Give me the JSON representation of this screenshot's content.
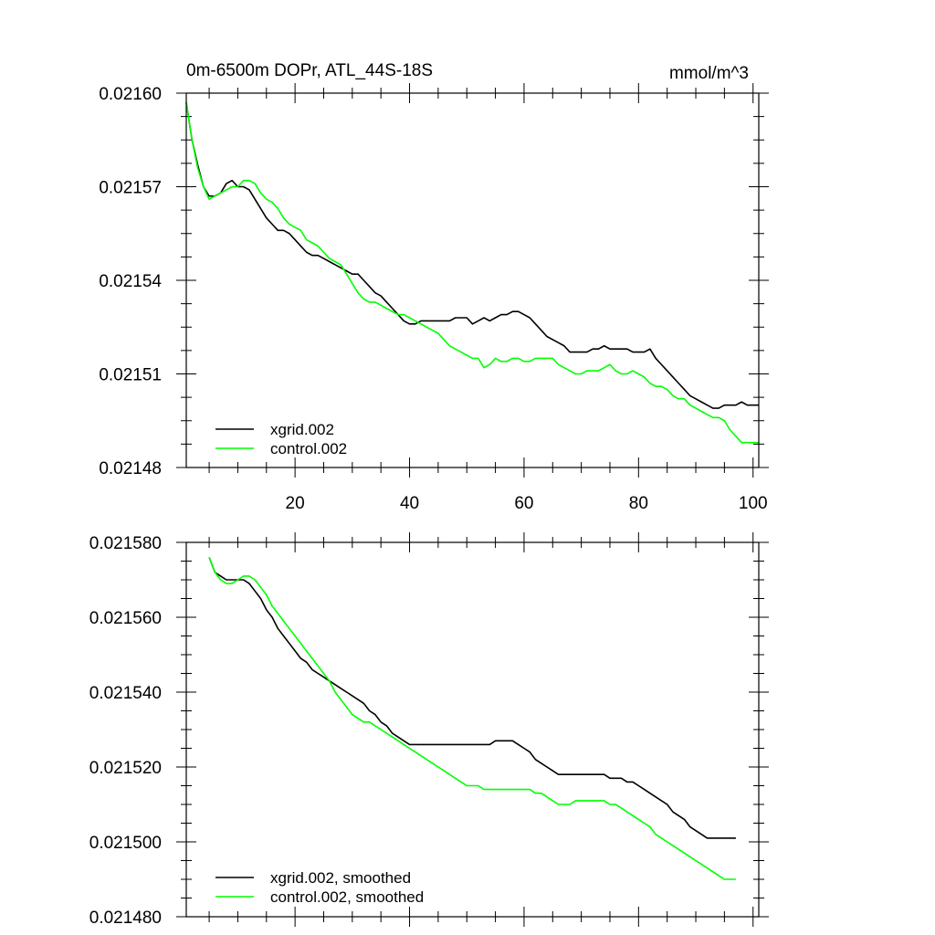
{
  "chart_data": [
    {
      "type": "line",
      "title_left": "0m-6500m DOPr, ATL_44S-18S",
      "title_right": "mmol/m^3",
      "xlim": [
        1,
        101
      ],
      "ylim": [
        0.02148,
        0.0216
      ],
      "x_ticks": [
        20,
        40,
        60,
        80,
        100
      ],
      "x_tick_labels": [
        "20",
        "40",
        "60",
        "80",
        "100"
      ],
      "y_ticks": [
        0.02148,
        0.02151,
        0.02154,
        0.02157,
        0.0216
      ],
      "y_tick_labels": [
        "0.02148",
        "0.02151",
        "0.02154",
        "0.02157",
        "0.02160"
      ],
      "legend": [
        "xgrid.002",
        "control.002"
      ],
      "series": [
        {
          "name": "xgrid.002",
          "color": "#000000",
          "x": [
            1,
            2,
            3,
            4,
            5,
            6,
            7,
            8,
            9,
            10,
            11,
            12,
            13,
            14,
            15,
            16,
            17,
            18,
            19,
            20,
            21,
            22,
            23,
            24,
            25,
            26,
            27,
            28,
            29,
            30,
            31,
            32,
            33,
            34,
            35,
            36,
            37,
            38,
            39,
            40,
            41,
            42,
            43,
            44,
            45,
            46,
            47,
            48,
            49,
            50,
            51,
            52,
            53,
            54,
            55,
            56,
            57,
            58,
            59,
            60,
            61,
            62,
            63,
            64,
            65,
            66,
            67,
            68,
            69,
            70,
            71,
            72,
            73,
            74,
            75,
            76,
            77,
            78,
            79,
            80,
            81,
            82,
            83,
            84,
            85,
            86,
            87,
            88,
            89,
            90,
            91,
            92,
            93,
            94,
            95,
            96,
            97,
            98,
            99,
            100,
            101
          ],
          "values": [
            0.021597,
            0.021585,
            0.021577,
            0.02157,
            0.021567,
            0.021567,
            0.021568,
            0.021571,
            0.021572,
            0.02157,
            0.02157,
            0.021569,
            0.021566,
            0.021563,
            0.02156,
            0.021558,
            0.021556,
            0.021556,
            0.021555,
            0.021553,
            0.021551,
            0.021549,
            0.021548,
            0.021548,
            0.021547,
            0.021546,
            0.021545,
            0.021544,
            0.021543,
            0.021542,
            0.021542,
            0.02154,
            0.021538,
            0.021536,
            0.021535,
            0.021533,
            0.021531,
            0.021529,
            0.021527,
            0.021526,
            0.021526,
            0.021527,
            0.021527,
            0.021527,
            0.021527,
            0.021527,
            0.021527,
            0.021528,
            0.021528,
            0.021528,
            0.021526,
            0.021527,
            0.021528,
            0.021527,
            0.021528,
            0.021529,
            0.021529,
            0.02153,
            0.02153,
            0.021529,
            0.021528,
            0.021526,
            0.021524,
            0.021522,
            0.021521,
            0.02152,
            0.021519,
            0.021517,
            0.021517,
            0.021517,
            0.021517,
            0.021518,
            0.021518,
            0.021519,
            0.021518,
            0.021518,
            0.021518,
            0.021518,
            0.021517,
            0.021517,
            0.021517,
            0.021518,
            0.021515,
            0.021513,
            0.021511,
            0.021509,
            0.021507,
            0.021505,
            0.021503,
            0.021502,
            0.021501,
            0.0215,
            0.021499,
            0.021499,
            0.0215,
            0.0215,
            0.0215,
            0.021501,
            0.0215,
            0.0215,
            0.0215
          ]
        },
        {
          "name": "control.002",
          "color": "#00ff00",
          "x": [
            1,
            2,
            3,
            4,
            5,
            6,
            7,
            8,
            9,
            10,
            11,
            12,
            13,
            14,
            15,
            16,
            17,
            18,
            19,
            20,
            21,
            22,
            23,
            24,
            25,
            26,
            27,
            28,
            29,
            30,
            31,
            32,
            33,
            34,
            35,
            36,
            37,
            38,
            39,
            40,
            41,
            42,
            43,
            44,
            45,
            46,
            47,
            48,
            49,
            50,
            51,
            52,
            53,
            54,
            55,
            56,
            57,
            58,
            59,
            60,
            61,
            62,
            63,
            64,
            65,
            66,
            67,
            68,
            69,
            70,
            71,
            72,
            73,
            74,
            75,
            76,
            77,
            78,
            79,
            80,
            81,
            82,
            83,
            84,
            85,
            86,
            87,
            88,
            89,
            90,
            91,
            92,
            93,
            94,
            95,
            96,
            97,
            98,
            99,
            100,
            101
          ],
          "values": [
            0.021597,
            0.021585,
            0.021576,
            0.02157,
            0.021566,
            0.021567,
            0.021568,
            0.021569,
            0.02157,
            0.02157,
            0.021572,
            0.021572,
            0.021571,
            0.021568,
            0.021566,
            0.021565,
            0.021563,
            0.02156,
            0.021558,
            0.021557,
            0.021556,
            0.021553,
            0.021552,
            0.021551,
            0.021549,
            0.021547,
            0.021546,
            0.021545,
            0.021542,
            0.021539,
            0.021536,
            0.021534,
            0.021533,
            0.021533,
            0.021532,
            0.021531,
            0.02153,
            0.021529,
            0.021529,
            0.021528,
            0.021527,
            0.021526,
            0.021525,
            0.021524,
            0.021523,
            0.021521,
            0.021519,
            0.021518,
            0.021517,
            0.021516,
            0.021515,
            0.021515,
            0.021512,
            0.021513,
            0.021515,
            0.021514,
            0.021514,
            0.021515,
            0.021515,
            0.021514,
            0.021514,
            0.021515,
            0.021515,
            0.021515,
            0.021515,
            0.021513,
            0.021512,
            0.021511,
            0.02151,
            0.02151,
            0.021511,
            0.021511,
            0.021511,
            0.021512,
            0.021513,
            0.021511,
            0.02151,
            0.02151,
            0.021511,
            0.02151,
            0.021509,
            0.021507,
            0.021506,
            0.021506,
            0.021505,
            0.021503,
            0.021502,
            0.021502,
            0.0215,
            0.021499,
            0.021498,
            0.021497,
            0.021496,
            0.021496,
            0.021495,
            0.021492,
            0.02149,
            0.021488,
            0.021488,
            0.021488,
            0.021488
          ]
        }
      ]
    },
    {
      "type": "line",
      "xlim": [
        1,
        101
      ],
      "ylim": [
        0.02148,
        0.02158
      ],
      "x_ticks": [
        20,
        40,
        60,
        80,
        100
      ],
      "y_ticks": [
        0.02148,
        0.0215,
        0.02152,
        0.02154,
        0.02156,
        0.02158
      ],
      "y_tick_labels": [
        "0.021480",
        "0.021500",
        "0.021520",
        "0.021540",
        "0.021560",
        "0.021580"
      ],
      "legend": [
        "xgrid.002, smoothed",
        "control.002, smoothed"
      ],
      "series": [
        {
          "name": "xgrid.002, smoothed",
          "color": "#000000",
          "x": [
            5,
            6,
            7,
            8,
            9,
            10,
            11,
            12,
            13,
            14,
            15,
            16,
            17,
            18,
            19,
            20,
            21,
            22,
            23,
            24,
            25,
            26,
            27,
            28,
            29,
            30,
            31,
            32,
            33,
            34,
            35,
            36,
            37,
            38,
            39,
            40,
            41,
            42,
            43,
            44,
            45,
            46,
            47,
            48,
            49,
            50,
            51,
            52,
            53,
            54,
            55,
            56,
            57,
            58,
            59,
            60,
            61,
            62,
            63,
            64,
            65,
            66,
            67,
            68,
            69,
            70,
            71,
            72,
            73,
            74,
            75,
            76,
            77,
            78,
            79,
            80,
            81,
            82,
            83,
            84,
            85,
            86,
            87,
            88,
            89,
            90,
            91,
            92,
            93,
            94,
            95,
            96,
            97
          ],
          "values": [
            0.021576,
            0.021572,
            0.021571,
            0.02157,
            0.02157,
            0.02157,
            0.02157,
            0.021569,
            0.021567,
            0.021565,
            0.021562,
            0.02156,
            0.021557,
            0.021555,
            0.021553,
            0.021551,
            0.021549,
            0.021548,
            0.021546,
            0.021545,
            0.021544,
            0.021543,
            0.021542,
            0.021541,
            0.02154,
            0.021539,
            0.021538,
            0.021537,
            0.021535,
            0.021534,
            0.021532,
            0.021531,
            0.021529,
            0.021528,
            0.021527,
            0.021526,
            0.021526,
            0.021526,
            0.021526,
            0.021526,
            0.021526,
            0.021526,
            0.021526,
            0.021526,
            0.021526,
            0.021526,
            0.021526,
            0.021526,
            0.021526,
            0.021526,
            0.021527,
            0.021527,
            0.021527,
            0.021527,
            0.021526,
            0.021525,
            0.021524,
            0.021522,
            0.021521,
            0.02152,
            0.021519,
            0.021518,
            0.021518,
            0.021518,
            0.021518,
            0.021518,
            0.021518,
            0.021518,
            0.021518,
            0.021518,
            0.021517,
            0.021517,
            0.021517,
            0.021516,
            0.021516,
            0.021515,
            0.021514,
            0.021513,
            0.021512,
            0.021511,
            0.02151,
            0.021508,
            0.021507,
            0.021506,
            0.021504,
            0.021503,
            0.021502,
            0.021501,
            0.021501,
            0.021501,
            0.021501,
            0.021501,
            0.021501
          ]
        },
        {
          "name": "control.002, smoothed",
          "color": "#00ff00",
          "x": [
            5,
            6,
            7,
            8,
            9,
            10,
            11,
            12,
            13,
            14,
            15,
            16,
            17,
            18,
            19,
            20,
            21,
            22,
            23,
            24,
            25,
            26,
            27,
            28,
            29,
            30,
            31,
            32,
            33,
            34,
            35,
            36,
            37,
            38,
            39,
            40,
            41,
            42,
            43,
            44,
            45,
            46,
            47,
            48,
            49,
            50,
            51,
            52,
            53,
            54,
            55,
            56,
            57,
            58,
            59,
            60,
            61,
            62,
            63,
            64,
            65,
            66,
            67,
            68,
            69,
            70,
            71,
            72,
            73,
            74,
            75,
            76,
            77,
            78,
            79,
            80,
            81,
            82,
            83,
            84,
            85,
            86,
            87,
            88,
            89,
            90,
            91,
            92,
            93,
            94,
            95,
            96,
            97
          ],
          "values": [
            0.021576,
            0.021572,
            0.02157,
            0.021569,
            0.021569,
            0.02157,
            0.021571,
            0.021571,
            0.02157,
            0.021568,
            0.021566,
            0.021563,
            0.021561,
            0.021559,
            0.021557,
            0.021555,
            0.021553,
            0.021551,
            0.021549,
            0.021547,
            0.021545,
            0.021543,
            0.02154,
            0.021538,
            0.021536,
            0.021534,
            0.021533,
            0.021532,
            0.021532,
            0.021531,
            0.02153,
            0.021529,
            0.021528,
            0.021527,
            0.021526,
            0.021525,
            0.021524,
            0.021523,
            0.021522,
            0.021521,
            0.02152,
            0.021519,
            0.021518,
            0.021517,
            0.021516,
            0.021515,
            0.021515,
            0.021515,
            0.021514,
            0.021514,
            0.021514,
            0.021514,
            0.021514,
            0.021514,
            0.021514,
            0.021514,
            0.021514,
            0.021513,
            0.021513,
            0.021512,
            0.021511,
            0.02151,
            0.02151,
            0.02151,
            0.021511,
            0.021511,
            0.021511,
            0.021511,
            0.021511,
            0.021511,
            0.02151,
            0.02151,
            0.021509,
            0.021508,
            0.021507,
            0.021506,
            0.021505,
            0.021504,
            0.021502,
            0.021501,
            0.0215,
            0.021499,
            0.021498,
            0.021497,
            0.021496,
            0.021495,
            0.021494,
            0.021493,
            0.021492,
            0.021491,
            0.02149,
            0.02149,
            0.02149
          ]
        }
      ]
    }
  ]
}
